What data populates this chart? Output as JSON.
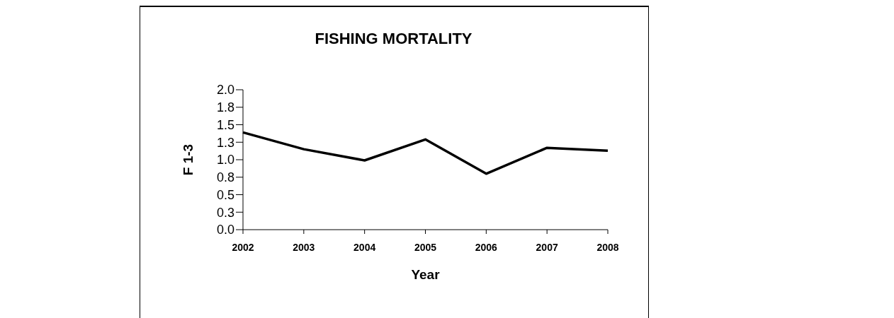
{
  "chart_data": {
    "type": "line",
    "title": "FISHING MORTALITY",
    "xlabel": "Year",
    "ylabel": "F 1-3",
    "categories": [
      "2002",
      "2003",
      "2004",
      "2005",
      "2006",
      "2007",
      "2008"
    ],
    "series": [
      {
        "color": "#000000",
        "values": [
          1.39,
          1.15,
          0.99,
          1.29,
          0.8,
          1.17,
          1.13
        ]
      }
    ],
    "ylim": [
      0,
      2
    ],
    "yticks": [
      {
        "value": 0,
        "label": "0.0"
      },
      {
        "value": 0.25,
        "label": "0.3"
      },
      {
        "value": 0.5,
        "label": "0.5"
      },
      {
        "value": 0.75,
        "label": "0.8"
      },
      {
        "value": 1,
        "label": "1.0"
      },
      {
        "value": 1.25,
        "label": "1.3"
      },
      {
        "value": 1.5,
        "label": "1.5"
      },
      {
        "value": 1.75,
        "label": "1.8"
      },
      {
        "value": 2,
        "label": "2.0"
      }
    ],
    "grid": false,
    "legend": false,
    "marker": "none",
    "line_style": "solid"
  }
}
